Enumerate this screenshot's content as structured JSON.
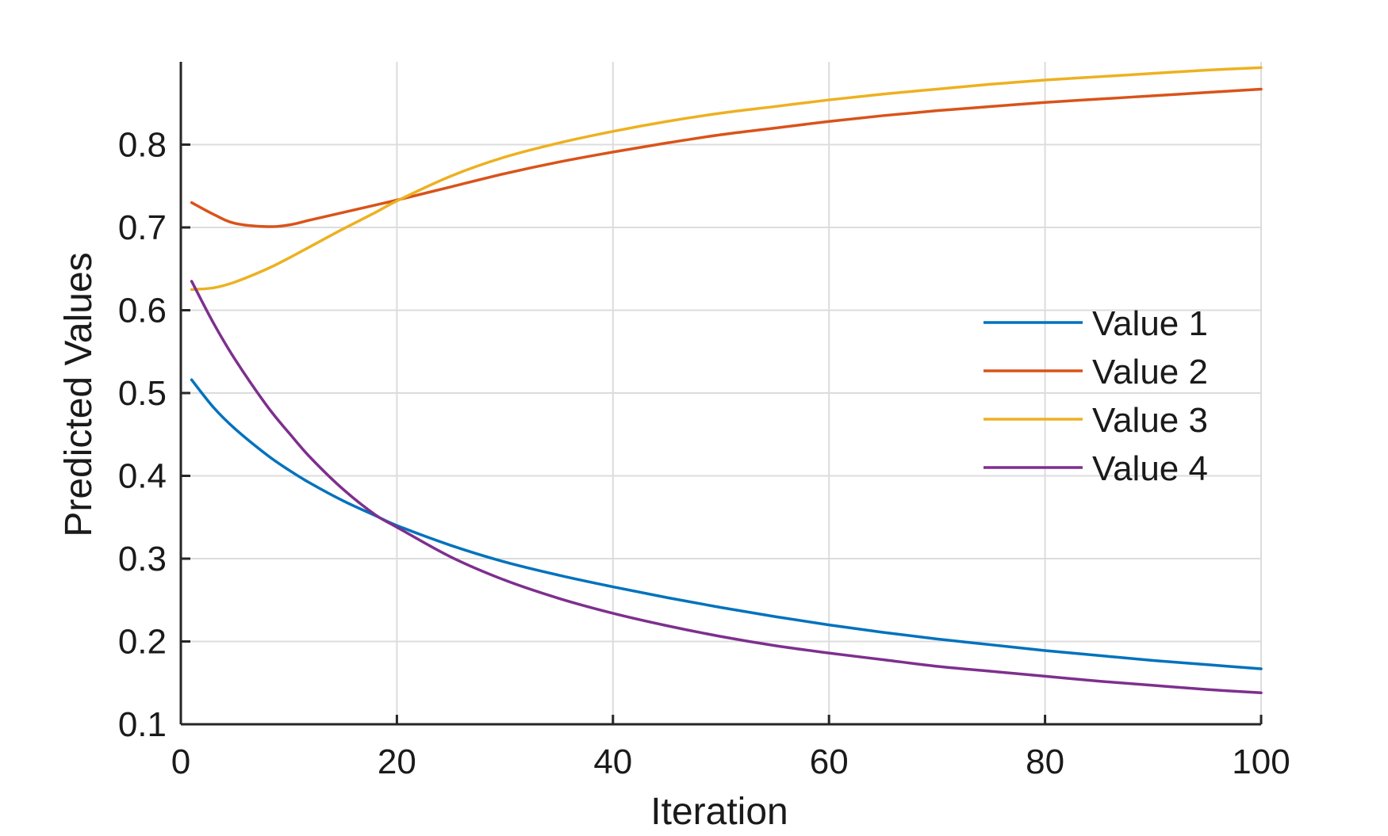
{
  "chart_data": {
    "type": "line",
    "title": "",
    "xlabel": "Iteration",
    "ylabel": "Predicted Values",
    "xlim": [
      0,
      100
    ],
    "ylim": [
      0.1,
      0.9
    ],
    "xticks": [
      0,
      20,
      40,
      60,
      80,
      100
    ],
    "xtick_labels": [
      "0",
      "20",
      "40",
      "60",
      "80",
      "100"
    ],
    "yticks": [
      0.1,
      0.2,
      0.3,
      0.4,
      0.5,
      0.6,
      0.7,
      0.8
    ],
    "ytick_labels": [
      "0.1",
      "0.2",
      "0.3",
      "0.4",
      "0.5",
      "0.6",
      "0.7",
      "0.8"
    ],
    "grid": true,
    "legend_position": "center-right",
    "x": [
      1,
      3,
      5,
      8,
      10,
      12,
      15,
      18,
      20,
      25,
      30,
      35,
      40,
      45,
      50,
      55,
      60,
      65,
      70,
      75,
      80,
      85,
      90,
      95,
      100
    ],
    "series": [
      {
        "name": "Value 1",
        "color": "#0072BD",
        "values": [
          0.516,
          0.483,
          0.457,
          0.425,
          0.407,
          0.391,
          0.37,
          0.352,
          0.34,
          0.316,
          0.296,
          0.28,
          0.266,
          0.253,
          0.241,
          0.23,
          0.22,
          0.211,
          0.203,
          0.196,
          0.189,
          0.183,
          0.177,
          0.172,
          0.167
        ]
      },
      {
        "name": "Value 2",
        "color": "#D95319",
        "values": [
          0.73,
          0.716,
          0.705,
          0.701,
          0.703,
          0.709,
          0.718,
          0.727,
          0.733,
          0.749,
          0.765,
          0.779,
          0.791,
          0.802,
          0.812,
          0.82,
          0.828,
          0.835,
          0.841,
          0.846,
          0.851,
          0.855,
          0.859,
          0.863,
          0.867
        ]
      },
      {
        "name": "Value 3",
        "color": "#EDB120",
        "values": [
          0.625,
          0.627,
          0.634,
          0.65,
          0.663,
          0.677,
          0.698,
          0.718,
          0.732,
          0.762,
          0.785,
          0.802,
          0.816,
          0.828,
          0.838,
          0.846,
          0.854,
          0.861,
          0.867,
          0.873,
          0.878,
          0.882,
          0.886,
          0.89,
          0.893
        ]
      },
      {
        "name": "Value 4",
        "color": "#7E2F8E",
        "values": [
          0.635,
          0.585,
          0.541,
          0.484,
          0.452,
          0.422,
          0.384,
          0.353,
          0.338,
          0.302,
          0.274,
          0.252,
          0.234,
          0.219,
          0.206,
          0.195,
          0.186,
          0.178,
          0.17,
          0.164,
          0.158,
          0.152,
          0.147,
          0.142,
          0.138
        ]
      }
    ]
  }
}
